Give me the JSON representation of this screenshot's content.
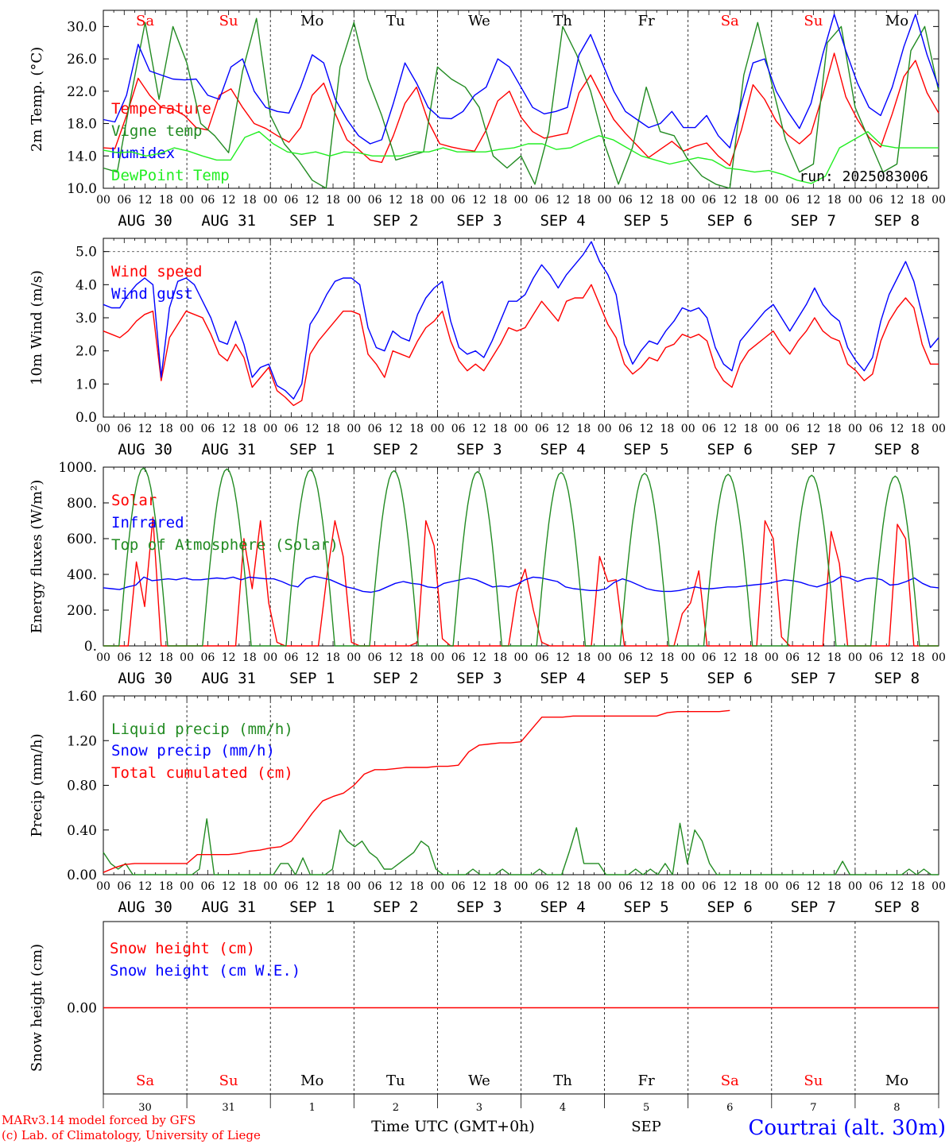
{
  "colors": {
    "red": "#ff0000",
    "green": "#228b22",
    "blue": "#0000ff",
    "lime": "#22ee22",
    "axis": "#000000"
  },
  "days": [
    "Sa",
    "Su",
    "Mo",
    "Tu",
    "We",
    "Th",
    "Fr",
    "Sa",
    "Su",
    "Mo"
  ],
  "day_is_weekend": [
    true,
    true,
    false,
    false,
    false,
    false,
    false,
    true,
    true,
    false
  ],
  "date_labels": [
    "AUG 30",
    "AUG 31",
    "SEP  1",
    "SEP  2",
    "SEP  3",
    "SEP  4",
    "SEP  5",
    "SEP  6",
    "SEP  7",
    "SEP  8"
  ],
  "hour_labels": [
    "00",
    "06",
    "12",
    "18"
  ],
  "hour_end": "00",
  "bottom": {
    "day_numbers": [
      "30",
      "31",
      "1",
      "2",
      "3",
      "4",
      "5",
      "6",
      "7",
      "8"
    ],
    "month": "SEP",
    "xlabel": "Time UTC (GMT+0h)",
    "credit1": "MARv3.14 model forced by GFS",
    "credit2": "(c) Lab. of Climatology, University of Liege",
    "station": "Courtrai (alt. 30m)"
  },
  "chart_data": [
    {
      "id": "temp",
      "type": "line",
      "ylabel": "2m Temp. (°C)",
      "ylim": [
        10,
        32
      ],
      "yticks": [
        10,
        14,
        18,
        22,
        26,
        30
      ],
      "ytick_labels": [
        "10.0",
        "14.0",
        "18.0",
        "22.0",
        "26.0",
        "30.0"
      ],
      "run_label": "run: 2025083006",
      "x_step_hours": 6,
      "series": [
        {
          "name": "Temperature",
          "color": "#ff0000",
          "values": [
            15,
            14.9,
            19,
            23.6,
            21.5,
            20,
            19.8,
            19,
            17.5,
            17.2,
            21.5,
            22.3,
            20,
            18,
            17.4,
            16.5,
            15.7,
            17.5,
            21.5,
            23,
            19.2,
            16,
            14.8,
            13.5,
            13.2,
            16.5,
            20.5,
            22.5,
            18.3,
            15.5,
            15.1,
            14.8,
            14.6,
            17.2,
            20.8,
            22,
            18.8,
            17,
            16.2,
            16.5,
            16.8,
            21.8,
            24,
            21.2,
            18.5,
            16.8,
            15.3,
            13.8,
            14.8,
            15.8,
            14.6,
            15.2,
            15.6,
            14,
            12.8,
            17.2,
            22.8,
            21,
            18.3,
            16.6,
            15.5,
            16.8,
            21.5,
            26.7,
            21.3,
            18.5,
            16.3,
            15.1,
            19.2,
            23.8,
            25.8,
            21.8,
            19.3
          ]
        },
        {
          "name": "Vigne temp",
          "color": "#228b22",
          "values": [
            12.5,
            12,
            21.5,
            30.5,
            21,
            30,
            25.5,
            18,
            16.5,
            14.4,
            24.5,
            31,
            19,
            15.5,
            13.5,
            11,
            10,
            25,
            30.5,
            23.5,
            19,
            13.5,
            14,
            14.5,
            25,
            23.5,
            22.5,
            20,
            14,
            12.5,
            14,
            10.5,
            17,
            30,
            26.5,
            22,
            15.5,
            10.5,
            15,
            22.5,
            17,
            16.5,
            13.5,
            11.5,
            10.5,
            10,
            24,
            30.5,
            23,
            16,
            12,
            13,
            28,
            30,
            20,
            16,
            12,
            13,
            27,
            30,
            22
          ]
        },
        {
          "name": "Humidex",
          "color": "#0000ff",
          "values": [
            18.5,
            18.2,
            21.5,
            27.8,
            24.5,
            24,
            23.5,
            23.4,
            23.5,
            21.5,
            21,
            25,
            26,
            22,
            20,
            19.5,
            19.3,
            22.5,
            26.5,
            25.5,
            21,
            18.5,
            16.5,
            15.5,
            16,
            20.5,
            25.5,
            23,
            20,
            18.7,
            18.6,
            19.5,
            21.5,
            22.5,
            26,
            25,
            22.5,
            20,
            19.2,
            19.5,
            20,
            26.5,
            29,
            25.5,
            22,
            19.5,
            18.5,
            17.5,
            18,
            19.5,
            17.5,
            17.5,
            19,
            16.5,
            15,
            20.5,
            25.5,
            26,
            22,
            19.5,
            17.4,
            20.5,
            26.5,
            31.5,
            27,
            23,
            20,
            19,
            22.5,
            27.5,
            31.5,
            26.5,
            22.5
          ]
        },
        {
          "name": "DewPoint Temp",
          "color": "#22ee22",
          "values": [
            14.7,
            14.4,
            14.5,
            14,
            14.3,
            15,
            14.6,
            14,
            13.5,
            13.5,
            16.3,
            17,
            15.5,
            14.5,
            14.2,
            14.5,
            14,
            14.5,
            14.4,
            14,
            14,
            14,
            14.5,
            14.5,
            15,
            14.5,
            14.5,
            14.5,
            14.8,
            15,
            15.5,
            15.5,
            14.8,
            15,
            15.8,
            16.5,
            16,
            15,
            14,
            13.5,
            13,
            13.4,
            13.8,
            13.5,
            12.5,
            12.3,
            12,
            12.2,
            11.7,
            11,
            10.6,
            11.5,
            15,
            16,
            17,
            15.3,
            15,
            15,
            15,
            15
          ]
        }
      ]
    },
    {
      "id": "wind",
      "type": "line",
      "ylabel": "10m Wind (m/s)",
      "ylim": [
        0,
        5.4
      ],
      "yticks": [
        0,
        1,
        2,
        3,
        4,
        5
      ],
      "ytick_labels": [
        "0.0",
        "1.0",
        "2.0",
        "3.0",
        "4.0",
        "5.0"
      ],
      "ref_line": 5.0,
      "x_step_hours": 3,
      "series": [
        {
          "name": "Wind speed",
          "color": "#ff0000",
          "values": [
            2.6,
            2.5,
            2.4,
            2.6,
            2.9,
            3.1,
            3.2,
            1.1,
            2.4,
            2.8,
            3.2,
            3.1,
            3,
            2.5,
            1.9,
            1.7,
            2.2,
            1.8,
            0.9,
            1.2,
            1.5,
            0.8,
            0.6,
            0.35,
            0.5,
            1.9,
            2.3,
            2.6,
            2.9,
            3.2,
            3.2,
            3.1,
            1.9,
            1.6,
            1.2,
            2,
            1.9,
            1.8,
            2.3,
            2.7,
            2.9,
            3.2,
            2.3,
            1.7,
            1.4,
            1.6,
            1.4,
            1.8,
            2.2,
            2.7,
            2.6,
            2.7,
            3.1,
            3.5,
            3.2,
            2.9,
            3.5,
            3.6,
            3.6,
            4,
            3.4,
            2.8,
            2.4,
            1.6,
            1.3,
            1.5,
            1.8,
            1.7,
            2.1,
            2.2,
            2.5,
            2.4,
            2.5,
            2.3,
            1.5,
            1.1,
            0.9,
            1.6,
            2,
            2.2,
            2.4,
            2.6,
            2.2,
            1.9,
            2.3,
            2.6,
            3,
            2.6,
            2.4,
            2.3,
            1.6,
            1.4,
            1.1,
            1.3,
            2.3,
            2.9,
            3.3,
            3.6,
            3.3,
            2.2,
            1.6,
            1.6
          ]
        },
        {
          "name": "Wind gust",
          "color": "#0000ff",
          "values": [
            3.4,
            3.3,
            3.3,
            3.7,
            4,
            4.2,
            4,
            1.2,
            3.3,
            4.1,
            4.2,
            4,
            3.5,
            3,
            2.3,
            2.2,
            2.9,
            2.2,
            1.2,
            1.5,
            1.6,
            0.95,
            0.8,
            0.55,
            1,
            2.8,
            3.2,
            3.7,
            4.1,
            4.2,
            4.2,
            4,
            2.7,
            2.1,
            2,
            2.6,
            2.4,
            2.3,
            3.1,
            3.6,
            3.9,
            4.1,
            2.9,
            2.1,
            1.9,
            2,
            1.8,
            2.3,
            2.9,
            3.5,
            3.5,
            3.7,
            4.2,
            4.6,
            4.3,
            3.9,
            4.3,
            4.6,
            4.9,
            5.3,
            4.7,
            4.3,
            3.7,
            2.2,
            1.6,
            2,
            2.3,
            2.2,
            2.6,
            2.9,
            3.3,
            3.2,
            3.3,
            3,
            2.1,
            1.6,
            1.4,
            2.3,
            2.6,
            2.9,
            3.2,
            3.4,
            3,
            2.6,
            3,
            3.4,
            3.9,
            3.4,
            3.1,
            2.9,
            2.1,
            1.7,
            1.4,
            1.8,
            2.9,
            3.7,
            4.2,
            4.7,
            4.1,
            3.1,
            2.1,
            2.4
          ]
        }
      ]
    },
    {
      "id": "flux",
      "type": "line",
      "ylabel": "Energy fluxes (W/m²)",
      "ylim": [
        0,
        1000
      ],
      "yticks": [
        0,
        200,
        400,
        600,
        800,
        1000
      ],
      "ytick_labels": [
        "0.",
        "200.",
        "400.",
        "600.",
        "800.",
        "1000."
      ],
      "x_step_hours": 3,
      "series": [
        {
          "name": "Solar",
          "color": "#ff0000",
          "values": [
            0,
            0,
            0,
            0,
            470,
            220,
            720,
            0,
            0,
            0,
            0,
            0,
            0,
            0,
            0,
            0,
            0,
            600,
            320,
            700,
            240,
            20,
            0,
            0,
            0,
            0,
            0,
            380,
            700,
            500,
            20,
            0,
            0,
            0,
            0,
            0,
            0,
            0,
            20,
            700,
            560,
            40,
            0,
            0,
            0,
            0,
            0,
            0,
            0,
            0,
            300,
            430,
            200,
            20,
            0,
            0,
            0,
            0,
            0,
            0,
            500,
            360,
            370,
            0,
            0,
            0,
            0,
            0,
            0,
            0,
            180,
            240,
            420,
            0,
            0,
            0,
            0,
            0,
            0,
            0,
            700,
            600,
            50,
            0,
            0,
            0,
            0,
            0,
            640,
            460,
            0,
            0,
            0,
            0,
            0,
            0,
            680,
            600,
            0,
            0,
            0,
            0
          ]
        },
        {
          "name": "Infrared",
          "color": "#0000ff",
          "values": [
            325,
            320,
            315,
            330,
            340,
            385,
            365,
            370,
            375,
            370,
            380,
            370,
            370,
            375,
            380,
            375,
            385,
            370,
            385,
            380,
            375,
            375,
            360,
            340,
            330,
            375,
            390,
            380,
            370,
            350,
            330,
            320,
            305,
            300,
            310,
            330,
            350,
            360,
            350,
            345,
            330,
            325,
            350,
            360,
            370,
            380,
            370,
            350,
            330,
            335,
            330,
            345,
            370,
            385,
            380,
            370,
            360,
            330,
            320,
            315,
            310,
            310,
            320,
            355,
            375,
            360,
            340,
            320,
            310,
            305,
            305,
            310,
            320,
            330,
            320,
            320,
            325,
            330,
            330,
            335,
            340,
            345,
            350,
            360,
            370,
            365,
            355,
            340,
            330,
            345,
            360,
            390,
            380,
            360,
            375,
            380,
            370,
            340,
            345,
            360,
            380,
            350,
            330,
            325
          ]
        },
        {
          "name": "Top of Atmosphere (Solar)",
          "color": "#228b22",
          "cycle": {
            "sunrise_h": 4.5,
            "sunset_h": 18.5,
            "peaks": [
              995,
              990,
              985,
              980,
              975,
              970,
              965,
              960,
              955,
              950
            ]
          }
        }
      ]
    },
    {
      "id": "precip",
      "type": "line",
      "ylabel": "Precip (mm/h)",
      "ylim": [
        0,
        1.6
      ],
      "yticks": [
        0,
        0.4,
        0.8,
        1.2,
        1.6
      ],
      "ytick_labels": [
        "0.00",
        "0.40",
        "0.80",
        "1.20",
        "1.60"
      ],
      "x_step_hours": 3,
      "series": [
        {
          "name": "Liquid precip (mm/h)",
          "color": "#228b22",
          "values": [
            0.2,
            0.1,
            0.05,
            0.1,
            0,
            0,
            0,
            0,
            0,
            0,
            0,
            0,
            0,
            0.05,
            0.5,
            0,
            0,
            0,
            0,
            0,
            0,
            0,
            0,
            0,
            0.1,
            0.1,
            0,
            0.15,
            0,
            0,
            0,
            0.05,
            0.4,
            0.3,
            0.25,
            0.3,
            0.2,
            0.15,
            0.05,
            0.05,
            0.1,
            0.15,
            0.2,
            0.3,
            0.25,
            0.05,
            0,
            0,
            0,
            0,
            0.05,
            0,
            0,
            0,
            0.05,
            0,
            0,
            0,
            0,
            0.05,
            0,
            0,
            0,
            0.2,
            0.42,
            0.1,
            0.1,
            0.1,
            0,
            0,
            0,
            0,
            0.05,
            0,
            0.05,
            0,
            0.1,
            0,
            0.46,
            0.1,
            0.4,
            0.3,
            0.1,
            0,
            0,
            0,
            0,
            0,
            0,
            0,
            0,
            0,
            0,
            0,
            0,
            0,
            0,
            0,
            0,
            0,
            0.12,
            0,
            0,
            0,
            0,
            0,
            0,
            0,
            0,
            0.05,
            0,
            0.05,
            0,
            0
          ]
        },
        {
          "name": "Snow precip (mm/h)",
          "color": "#0000ff",
          "values": []
        },
        {
          "name": "Total cumulated (cm)",
          "color": "#ff0000",
          "values": [
            0.02,
            0.06,
            0.09,
            0.1,
            0.1,
            0.1,
            0.1,
            0.1,
            0.1,
            0.18,
            0.18,
            0.18,
            0.18,
            0.19,
            0.21,
            0.22,
            0.24,
            0.25,
            0.3,
            0.42,
            0.55,
            0.66,
            0.7,
            0.73,
            0.8,
            0.9,
            0.94,
            0.94,
            0.95,
            0.96,
            0.96,
            0.96,
            0.97,
            0.97,
            0.98,
            1.1,
            1.16,
            1.17,
            1.18,
            1.18,
            1.19,
            1.3,
            1.41,
            1.41,
            1.41,
            1.42,
            1.42,
            1.42,
            1.42,
            1.42,
            1.42,
            1.42,
            1.42,
            1.42,
            1.45,
            1.46,
            1.46,
            1.46,
            1.46,
            1.46,
            1.47
          ]
        }
      ]
    },
    {
      "id": "snow",
      "type": "line",
      "ylabel": "Snow height (cm)",
      "ylim": [
        -1,
        1
      ],
      "yticks": [
        0
      ],
      "ytick_labels": [
        "0.00"
      ],
      "x_step_hours": 6,
      "series": [
        {
          "name": "Snow height (cm)",
          "color": "#ff0000",
          "values": [
            0,
            0
          ]
        },
        {
          "name": "Snow height (cm W.E.)",
          "color": "#0000ff",
          "values": []
        }
      ]
    }
  ]
}
